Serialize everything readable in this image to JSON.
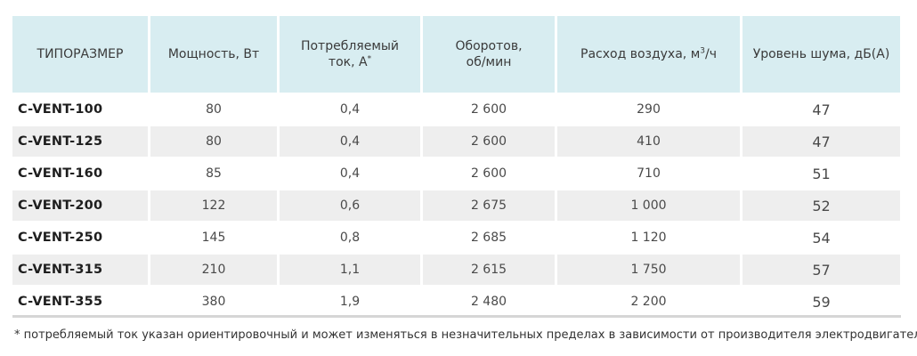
{
  "headers": [
    "ТИПОРАЗМЕР",
    "Мощность, Вт",
    "Потребляемый ток, А*",
    "Оборотов, об/мин",
    "Расход воздуха, м³/ч",
    "Уровень шума, дБ(А)"
  ],
  "header_parts": {
    "current_line1": "Потребляемый",
    "current_line2": "ток, А",
    "current_mark": "*",
    "rpm_line1": "Оборотов,",
    "rpm_line2": "об/мин",
    "air_text": "Расход воздуха, м",
    "air_sup": "3",
    "air_unit": "/ч"
  },
  "rows": [
    {
      "model": "C-VENT-100",
      "power": "80",
      "current": "0,4",
      "rpm": "2 600",
      "airflow": "290",
      "noise": "47"
    },
    {
      "model": "C-VENT-125",
      "power": "80",
      "current": "0,4",
      "rpm": "2 600",
      "airflow": "410",
      "noise": "47"
    },
    {
      "model": "C-VENT-160",
      "power": "85",
      "current": "0,4",
      "rpm": "2 600",
      "airflow": "710",
      "noise": "51"
    },
    {
      "model": "C-VENT-200",
      "power": "122",
      "current": "0,6",
      "rpm": "2 675",
      "airflow": "1 000",
      "noise": "52"
    },
    {
      "model": "C-VENT-250",
      "power": "145",
      "current": "0,8",
      "rpm": "2 685",
      "airflow": "1 120",
      "noise": "54"
    },
    {
      "model": "C-VENT-315",
      "power": "210",
      "current": "1,1",
      "rpm": "2 615",
      "airflow": "1 750",
      "noise": "57"
    },
    {
      "model": "C-VENT-355",
      "power": "380",
      "current": "1,9",
      "rpm": "2 480",
      "airflow": "2 200",
      "noise": "59"
    }
  ],
  "footnote": "* потребляемый ток указан ориентировочный и может изменяться в незначительных пределах в зависимости от производителя электродвигателя.",
  "colors": {
    "header_bg": "#d8edf1",
    "row_shade": "#eeeeee",
    "text": "#3a3a3a"
  }
}
